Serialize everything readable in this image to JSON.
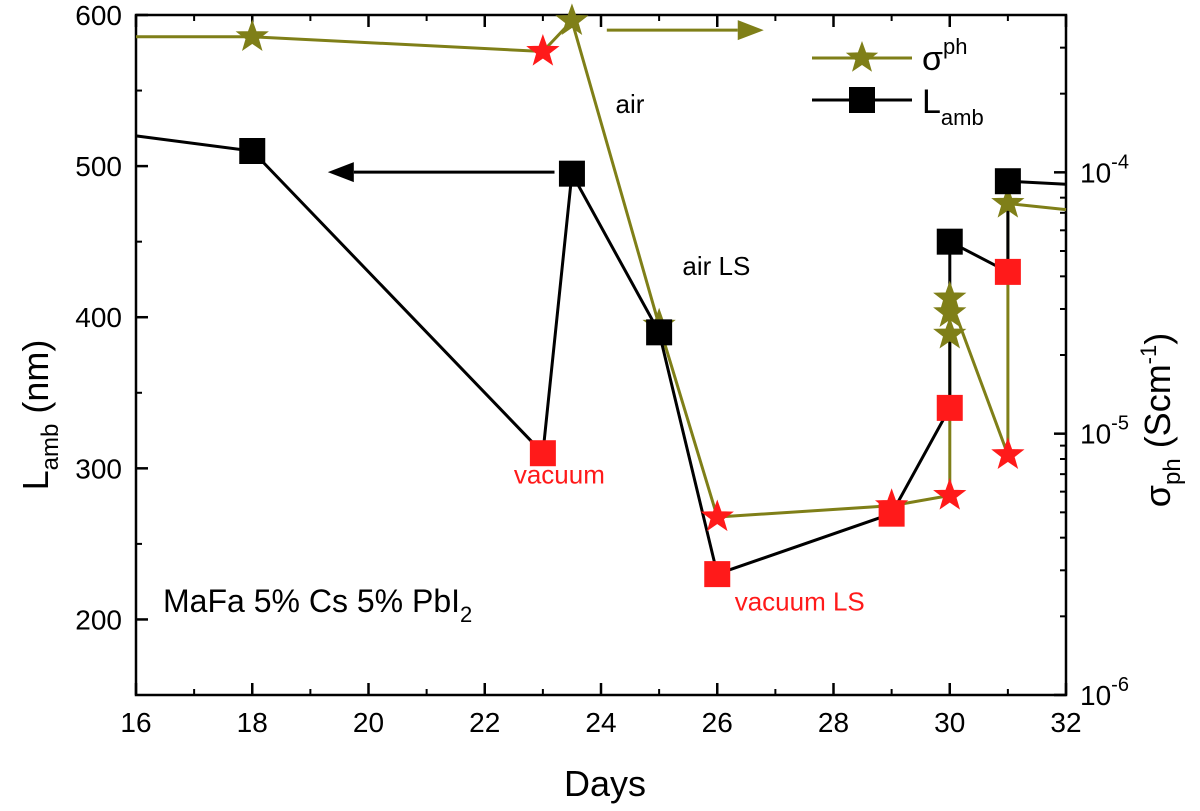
{
  "chart_data": {
    "type": "line",
    "title": "",
    "annotation_sample": "MaFa 5% Cs 5% PbI",
    "annotation_sample_sub": "2",
    "xlabel": "Days",
    "ylabel_left": {
      "main": "L",
      "sub": "amb",
      "rest": " (nm)"
    },
    "ylabel_right": {
      "main": "σ",
      "sub": "ph",
      "rest": " (Scm",
      "sup": "-1",
      "close": ")"
    },
    "xlim": [
      16,
      32
    ],
    "ylim_left": [
      150,
      600
    ],
    "ylim_right": [
      1e-06,
      0.0004
    ],
    "yscale_right": "log",
    "grid": false,
    "legend_position": "top-right",
    "x_ticks": [
      "16",
      "18",
      "20",
      "22",
      "24",
      "26",
      "28",
      "30",
      "32"
    ],
    "y_left_ticks": [
      "200",
      "300",
      "400",
      "500",
      "600"
    ],
    "y_right_ticks": [
      {
        "base": "10",
        "exp": "-6",
        "value": 1e-06
      },
      {
        "base": "10",
        "exp": "-5",
        "value": 1e-05
      },
      {
        "base": "10",
        "exp": "-4",
        "value": 0.0001
      }
    ],
    "series": [
      {
        "name": {
          "main": "σ",
          "sup": "ph"
        },
        "axis": "right",
        "color": "#7f7f18",
        "marker": "star",
        "line_start": {
          "x": 16,
          "y": 0.00033
        },
        "line_end": {
          "x": 32,
          "y": 7.2e-05
        },
        "points": [
          {
            "x": 18,
            "y": 0.00033,
            "state": "air"
          },
          {
            "x": 23,
            "y": 0.00029,
            "state": "vacuum"
          },
          {
            "x": 23.5,
            "y": 0.00038,
            "state": "air"
          },
          {
            "x": 25,
            "y": 2.6e-05,
            "state": "air"
          },
          {
            "x": 26,
            "y": 4.8e-06,
            "state": "vacuum"
          },
          {
            "x": 29,
            "y": 5.3e-06,
            "state": "vacuum"
          },
          {
            "x": 30,
            "y": 5.8e-06,
            "state": "vacuum"
          },
          {
            "x": 30,
            "y": 2.4e-05,
            "state": "air"
          },
          {
            "x": 30,
            "y": 2.9e-05,
            "state": "air"
          },
          {
            "x": 30,
            "y": 3.3e-05,
            "state": "air"
          },
          {
            "x": 31,
            "y": 8.3e-06,
            "state": "vacuum"
          },
          {
            "x": 31,
            "y": 7.6e-05,
            "state": "air"
          }
        ]
      },
      {
        "name": {
          "main": "L",
          "sub": "amb"
        },
        "axis": "left",
        "color": "#000000",
        "marker": "square",
        "line_start": {
          "x": 16,
          "y": 520
        },
        "line_end": {
          "x": 32,
          "y": 488
        },
        "points": [
          {
            "x": 18,
            "y": 510,
            "state": "air"
          },
          {
            "x": 23,
            "y": 310,
            "state": "vacuum"
          },
          {
            "x": 23.5,
            "y": 495,
            "state": "air"
          },
          {
            "x": 25,
            "y": 390,
            "state": "air"
          },
          {
            "x": 26,
            "y": 230,
            "state": "vacuum"
          },
          {
            "x": 29,
            "y": 270,
            "state": "vacuum"
          },
          {
            "x": 30,
            "y": 340,
            "state": "vacuum"
          },
          {
            "x": 30,
            "y": 450,
            "state": "air"
          },
          {
            "x": 31,
            "y": 430,
            "state": "vacuum"
          },
          {
            "x": 31,
            "y": 490,
            "state": "air"
          }
        ]
      }
    ],
    "state_colors": {
      "air_sigma": "#7f7f18",
      "air_lamb": "#000000",
      "vacuum": "#ff1a1a"
    },
    "axis_arrows": [
      {
        "target": "left",
        "color": "#000000",
        "x_from": 23.2,
        "x_to": 19.3,
        "y": 496
      },
      {
        "target": "right",
        "color": "#7f7f18",
        "x_from": 24.1,
        "x_to": 26.8,
        "y": 0.00035
      }
    ],
    "text_annotations": [
      {
        "text": "air",
        "x": 24.25,
        "y": 535,
        "axis": "left",
        "color": "#000000"
      },
      {
        "text": "air LS",
        "x": 25.4,
        "y": 428,
        "axis": "left",
        "color": "#000000"
      },
      {
        "text": "vacuum",
        "x": 22.5,
        "y": 290,
        "axis": "left",
        "color": "#ff1a1a"
      },
      {
        "text": "vacuum LS",
        "x": 26.3,
        "y": 206,
        "axis": "left",
        "color": "#ff1a1a"
      }
    ]
  }
}
